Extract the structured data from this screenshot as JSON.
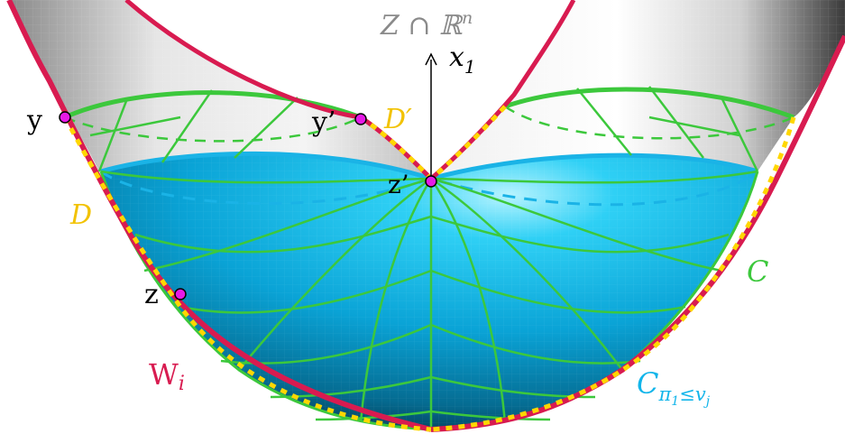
{
  "labels": {
    "axis_top": "Z ∩ ℝ",
    "axis_top_sup": "n",
    "axis_x": "x",
    "axis_x_sub": "1",
    "point_y": "y",
    "point_y_prime": "y’",
    "point_z_prime": "z’",
    "point_z": "z",
    "region_D": "D",
    "region_D_prime": "D′",
    "region_C": "C",
    "region_W": "W",
    "region_W_sub": "i",
    "region_Cpi": "C",
    "region_Cpi_sub": "π",
    "region_Cpi_sub2": "1",
    "region_Cpi_sub3": "≤v",
    "region_Cpi_sub4": "j"
  },
  "colors": {
    "gray_surface": "#d9d9d9",
    "cyan_surface": "#1ab3e6",
    "green_mesh": "#3cc83c",
    "crimson_edge": "#d81b50",
    "yellow_dash": "#ffd700",
    "label_gold": "#f2c200",
    "label_green": "#3cc83c",
    "label_cyan": "#12b5ea",
    "label_crimson": "#d81b50",
    "label_gray": "#8a8a8a",
    "point_fill": "#e61ae6"
  }
}
